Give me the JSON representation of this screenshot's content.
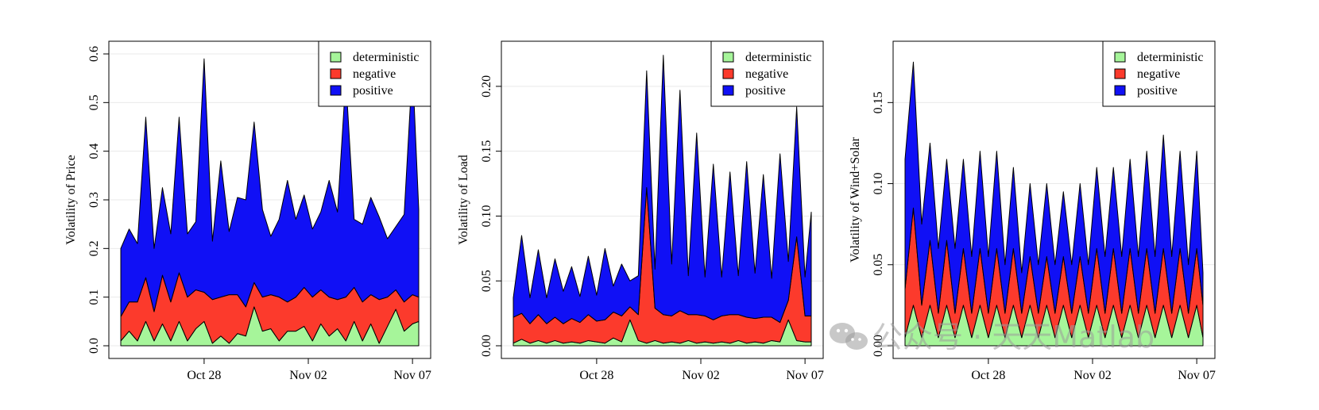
{
  "colors": {
    "deterministic": "#a6f59a",
    "negative": "#fc3a2c",
    "positive": "#1010f5",
    "outline": "#000000",
    "grid": "#e9e9e9"
  },
  "watermark": {
    "icon": "wechat-icon",
    "text": "公众号 · 天天Matlab"
  },
  "chart_data": [
    {
      "type": "area",
      "stacked": true,
      "ylabel": "Volatility of Price",
      "x_ticks": [
        "Oct 28",
        "Nov 02",
        "Nov 07"
      ],
      "x_tick_days": [
        27.9,
        32.9,
        37.9
      ],
      "x_range_days": [
        23.9,
        38.2
      ],
      "ylim": [
        0,
        0.6
      ],
      "yticks": [
        0.0,
        0.1,
        0.2,
        0.3,
        0.4,
        0.5,
        0.6
      ],
      "ytick_labels": [
        "0.0",
        "0.1",
        "0.2",
        "0.3",
        "0.4",
        "0.5",
        "0.6"
      ],
      "legend": {
        "position": "top-right",
        "entries": [
          "deterministic",
          "negative",
          "positive"
        ]
      },
      "series": [
        {
          "name": "deterministic",
          "x": [
            23.9,
            24.3,
            24.7,
            25.1,
            25.5,
            25.9,
            26.3,
            26.7,
            27.1,
            27.5,
            27.9,
            28.3,
            28.7,
            29.1,
            29.5,
            29.9,
            30.3,
            30.7,
            31.1,
            31.5,
            31.9,
            32.3,
            32.7,
            33.1,
            33.5,
            33.9,
            34.3,
            34.7,
            35.1,
            35.5,
            35.9,
            36.3,
            36.7,
            37.1,
            37.5,
            37.9,
            38.2
          ],
          "values": [
            0.01,
            0.03,
            0.01,
            0.05,
            0.01,
            0.045,
            0.01,
            0.05,
            0.01,
            0.035,
            0.05,
            0.005,
            0.02,
            0.005,
            0.025,
            0.02,
            0.08,
            0.03,
            0.035,
            0.01,
            0.03,
            0.03,
            0.04,
            0.01,
            0.045,
            0.02,
            0.035,
            0.01,
            0.05,
            0.01,
            0.045,
            0.005,
            0.04,
            0.075,
            0.03,
            0.045,
            0.05
          ]
        },
        {
          "name": "negative",
          "x": [
            23.9,
            24.3,
            24.7,
            25.1,
            25.5,
            25.9,
            26.3,
            26.7,
            27.1,
            27.5,
            27.9,
            28.3,
            28.7,
            29.1,
            29.5,
            29.9,
            30.3,
            30.7,
            31.1,
            31.5,
            31.9,
            32.3,
            32.7,
            33.1,
            33.5,
            33.9,
            34.3,
            34.7,
            35.1,
            35.5,
            35.9,
            36.3,
            36.7,
            37.1,
            37.5,
            37.9,
            38.2
          ],
          "values": [
            0.05,
            0.06,
            0.08,
            0.09,
            0.06,
            0.1,
            0.08,
            0.1,
            0.09,
            0.08,
            0.06,
            0.09,
            0.08,
            0.1,
            0.08,
            0.06,
            0.05,
            0.07,
            0.07,
            0.09,
            0.06,
            0.07,
            0.08,
            0.09,
            0.07,
            0.08,
            0.06,
            0.09,
            0.07,
            0.08,
            0.06,
            0.09,
            0.06,
            0.04,
            0.06,
            0.06,
            0.05
          ]
        },
        {
          "name": "positive",
          "x": [
            23.9,
            24.3,
            24.7,
            25.1,
            25.5,
            25.9,
            26.3,
            26.7,
            27.1,
            27.5,
            27.9,
            28.3,
            28.7,
            29.1,
            29.5,
            29.9,
            30.3,
            30.7,
            31.1,
            31.5,
            31.9,
            32.3,
            32.7,
            33.1,
            33.5,
            33.9,
            34.3,
            34.7,
            35.1,
            35.5,
            35.9,
            36.3,
            36.7,
            37.1,
            37.5,
            37.9,
            38.2
          ],
          "values": [
            0.14,
            0.15,
            0.12,
            0.33,
            0.13,
            0.18,
            0.14,
            0.32,
            0.13,
            0.14,
            0.48,
            0.12,
            0.28,
            0.13,
            0.2,
            0.22,
            0.33,
            0.18,
            0.12,
            0.16,
            0.25,
            0.16,
            0.19,
            0.14,
            0.16,
            0.24,
            0.18,
            0.45,
            0.14,
            0.16,
            0.2,
            0.17,
            0.12,
            0.13,
            0.18,
            0.47,
            0.18
          ]
        }
      ]
    },
    {
      "type": "area",
      "stacked": true,
      "ylabel": "Volatility of Load",
      "x_ticks": [
        "Oct 28",
        "Nov 02",
        "Nov 07"
      ],
      "x_tick_days": [
        27.9,
        32.9,
        37.9
      ],
      "x_range_days": [
        23.9,
        38.2
      ],
      "ylim": [
        0,
        0.225
      ],
      "yticks": [
        0.0,
        0.05,
        0.1,
        0.15,
        0.2
      ],
      "ytick_labels": [
        "0.00",
        "0.05",
        "0.10",
        "0.15",
        "0.20"
      ],
      "legend": {
        "position": "top-right",
        "entries": [
          "deterministic",
          "negative",
          "positive"
        ]
      },
      "series": [
        {
          "name": "deterministic",
          "x": [
            23.9,
            24.3,
            24.7,
            25.1,
            25.5,
            25.9,
            26.3,
            26.7,
            27.1,
            27.5,
            27.9,
            28.3,
            28.7,
            29.1,
            29.5,
            29.9,
            30.3,
            30.7,
            31.1,
            31.5,
            31.9,
            32.3,
            32.7,
            33.1,
            33.5,
            33.9,
            34.3,
            34.7,
            35.1,
            35.5,
            35.9,
            36.3,
            36.7,
            37.1,
            37.5,
            37.9,
            38.2
          ],
          "values": [
            0.002,
            0.005,
            0.002,
            0.004,
            0.002,
            0.004,
            0.002,
            0.003,
            0.002,
            0.004,
            0.003,
            0.002,
            0.006,
            0.003,
            0.02,
            0.004,
            0.002,
            0.004,
            0.002,
            0.003,
            0.002,
            0.004,
            0.002,
            0.003,
            0.002,
            0.003,
            0.002,
            0.004,
            0.002,
            0.003,
            0.002,
            0.004,
            0.003,
            0.02,
            0.004,
            0.003,
            0.003
          ]
        },
        {
          "name": "negative",
          "x": [
            23.9,
            24.3,
            24.7,
            25.1,
            25.5,
            25.9,
            26.3,
            26.7,
            27.1,
            27.5,
            27.9,
            28.3,
            28.7,
            29.1,
            29.5,
            29.9,
            30.3,
            30.7,
            31.1,
            31.5,
            31.9,
            32.3,
            32.7,
            33.1,
            33.5,
            33.9,
            34.3,
            34.7,
            35.1,
            35.5,
            35.9,
            36.3,
            36.7,
            37.1,
            37.5,
            37.9,
            38.2
          ],
          "values": [
            0.02,
            0.02,
            0.015,
            0.02,
            0.015,
            0.018,
            0.015,
            0.018,
            0.016,
            0.02,
            0.016,
            0.018,
            0.02,
            0.02,
            0.01,
            0.02,
            0.12,
            0.025,
            0.022,
            0.02,
            0.025,
            0.02,
            0.022,
            0.02,
            0.018,
            0.02,
            0.022,
            0.02,
            0.02,
            0.018,
            0.02,
            0.018,
            0.015,
            0.015,
            0.08,
            0.02,
            0.02
          ]
        },
        {
          "name": "positive",
          "x": [
            23.9,
            24.3,
            24.7,
            25.1,
            25.5,
            25.9,
            26.3,
            26.7,
            27.1,
            27.5,
            27.9,
            28.3,
            28.7,
            29.1,
            29.5,
            29.9,
            30.3,
            30.7,
            31.1,
            31.5,
            31.9,
            32.3,
            32.7,
            33.1,
            33.5,
            33.9,
            34.3,
            34.7,
            35.1,
            35.5,
            35.9,
            36.3,
            36.7,
            37.1,
            37.5,
            37.9,
            38.2
          ],
          "values": [
            0.015,
            0.06,
            0.02,
            0.05,
            0.02,
            0.045,
            0.025,
            0.04,
            0.02,
            0.045,
            0.02,
            0.055,
            0.02,
            0.04,
            0.02,
            0.03,
            0.09,
            0.03,
            0.2,
            0.04,
            0.17,
            0.03,
            0.14,
            0.03,
            0.12,
            0.03,
            0.11,
            0.03,
            0.12,
            0.035,
            0.11,
            0.03,
            0.13,
            0.03,
            0.1,
            0.03,
            0.08
          ]
        }
      ]
    },
    {
      "type": "area",
      "stacked": true,
      "ylabel": "Volatility of Wind+Solar",
      "x_ticks": [
        "Oct 28",
        "Nov 02",
        "Nov 07"
      ],
      "x_tick_days": [
        27.9,
        32.9,
        37.9
      ],
      "x_range_days": [
        23.9,
        38.2
      ],
      "ylim": [
        0,
        0.18
      ],
      "yticks": [
        0.0,
        0.05,
        0.1,
        0.15
      ],
      "ytick_labels": [
        "0.00",
        "0.05",
        "0.10",
        "0.15"
      ],
      "legend": {
        "position": "top-right",
        "entries": [
          "deterministic",
          "negative",
          "positive"
        ]
      },
      "series": [
        {
          "name": "deterministic",
          "x": [
            23.9,
            24.3,
            24.7,
            25.1,
            25.5,
            25.9,
            26.3,
            26.7,
            27.1,
            27.5,
            27.9,
            28.3,
            28.7,
            29.1,
            29.5,
            29.9,
            30.3,
            30.7,
            31.1,
            31.5,
            31.9,
            32.3,
            32.7,
            33.1,
            33.5,
            33.9,
            34.3,
            34.7,
            35.1,
            35.5,
            35.9,
            36.3,
            36.7,
            37.1,
            37.5,
            37.9,
            38.2
          ],
          "values": [
            0.005,
            0.025,
            0.005,
            0.025,
            0.005,
            0.025,
            0.005,
            0.025,
            0.005,
            0.025,
            0.005,
            0.025,
            0.005,
            0.025,
            0.005,
            0.025,
            0.005,
            0.025,
            0.005,
            0.025,
            0.005,
            0.025,
            0.005,
            0.025,
            0.005,
            0.025,
            0.005,
            0.025,
            0.005,
            0.025,
            0.005,
            0.025,
            0.005,
            0.025,
            0.005,
            0.025,
            0.005
          ]
        },
        {
          "name": "negative",
          "x": [
            23.9,
            24.3,
            24.7,
            25.1,
            25.5,
            25.9,
            26.3,
            26.7,
            27.1,
            27.5,
            27.9,
            28.3,
            28.7,
            29.1,
            29.5,
            29.9,
            30.3,
            30.7,
            31.1,
            31.5,
            31.9,
            32.3,
            32.7,
            33.1,
            33.5,
            33.9,
            34.3,
            34.7,
            35.1,
            35.5,
            35.9,
            36.3,
            36.7,
            37.1,
            37.5,
            37.9,
            38.2
          ],
          "values": [
            0.03,
            0.06,
            0.02,
            0.04,
            0.015,
            0.04,
            0.015,
            0.035,
            0.015,
            0.035,
            0.015,
            0.035,
            0.015,
            0.035,
            0.015,
            0.03,
            0.015,
            0.03,
            0.015,
            0.03,
            0.015,
            0.03,
            0.015,
            0.035,
            0.015,
            0.035,
            0.015,
            0.035,
            0.015,
            0.035,
            0.015,
            0.035,
            0.015,
            0.035,
            0.015,
            0.035,
            0.02
          ]
        },
        {
          "name": "positive",
          "x": [
            23.9,
            24.3,
            24.7,
            25.1,
            25.5,
            25.9,
            26.3,
            26.7,
            27.1,
            27.5,
            27.9,
            28.3,
            28.7,
            29.1,
            29.5,
            29.9,
            30.3,
            30.7,
            31.1,
            31.5,
            31.9,
            32.3,
            32.7,
            33.1,
            33.5,
            33.9,
            34.3,
            34.7,
            35.1,
            35.5,
            35.9,
            36.3,
            36.7,
            37.1,
            37.5,
            37.9,
            38.2
          ],
          "values": [
            0.08,
            0.09,
            0.05,
            0.06,
            0.04,
            0.05,
            0.04,
            0.055,
            0.035,
            0.06,
            0.035,
            0.06,
            0.03,
            0.05,
            0.025,
            0.045,
            0.03,
            0.045,
            0.03,
            0.04,
            0.03,
            0.045,
            0.03,
            0.05,
            0.035,
            0.05,
            0.035,
            0.055,
            0.035,
            0.06,
            0.035,
            0.07,
            0.035,
            0.06,
            0.03,
            0.06,
            0.02
          ]
        }
      ]
    }
  ]
}
